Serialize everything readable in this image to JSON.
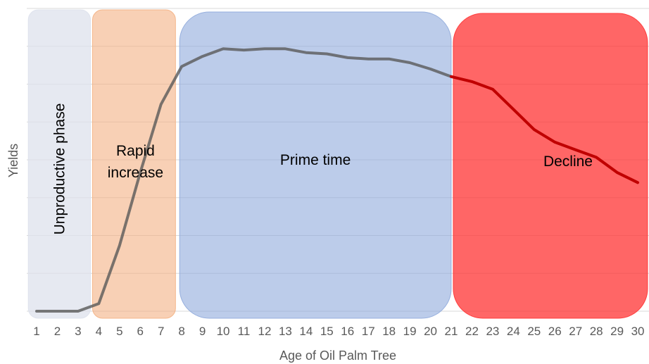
{
  "chart_data": {
    "type": "line",
    "title": "",
    "xlabel": "Age of Oil Palm Tree",
    "ylabel": "Yields",
    "x": [
      1,
      2,
      3,
      4,
      5,
      6,
      7,
      8,
      9,
      10,
      11,
      12,
      13,
      14,
      15,
      16,
      17,
      18,
      19,
      20,
      21,
      22,
      23,
      24,
      25,
      26,
      27,
      28,
      29,
      30
    ],
    "series": [
      {
        "values": [
          0,
          0,
          0,
          3,
          26,
          55,
          82,
          97,
          101,
          104,
          103.5,
          104,
          104,
          102.5,
          102,
          100.5,
          100,
          100,
          98.5,
          96,
          93,
          91,
          88,
          80,
          72,
          67,
          64,
          61,
          55,
          51
        ]
      }
    ],
    "xlim": [
      1,
      30
    ],
    "ylim": [
      0,
      120
    ],
    "grid": true,
    "phases": [
      {
        "label": "Unproductive phase",
        "orientation": "vertical",
        "color": "#dde1ec",
        "from_x": 0.6,
        "to_x": 3.6
      },
      {
        "label": "Rapid increase",
        "lines": [
          "Rapid",
          "increase"
        ],
        "color": "#f4b183",
        "from_x": 3.7,
        "to_x": 7.7
      },
      {
        "label": "Prime time",
        "color": "#8faadc",
        "from_x": 7.9,
        "to_x": 21.0
      },
      {
        "label": "Decline",
        "color": "#ff3333",
        "from_x": 21.1,
        "to_x": 30.5
      }
    ],
    "colors": {
      "line": "#595959",
      "decline_line": "#c00000",
      "grid": "#d9d9d9",
      "text": "#595959"
    }
  }
}
